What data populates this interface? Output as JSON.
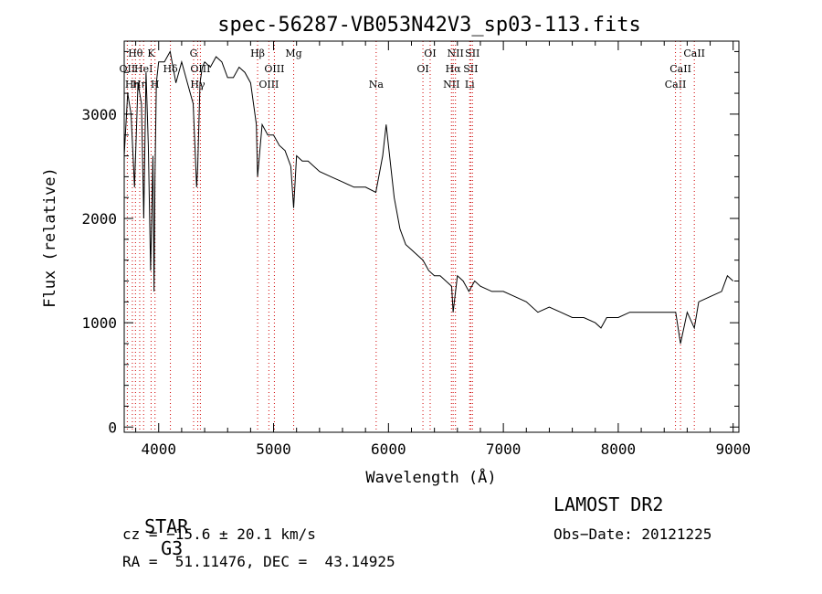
{
  "chart_data": {
    "type": "line",
    "title": "spec-56287-VB053N42V3_sp03-113.fits",
    "xlabel": "Wavelength (Å)",
    "ylabel": "Flux (relative)",
    "xlim": [
      3700,
      9050
    ],
    "ylim": [
      -50,
      3700
    ],
    "xticks": [
      4000,
      5000,
      6000,
      7000,
      8000,
      9000
    ],
    "yticks": [
      0,
      1000,
      2000,
      3000
    ],
    "grid": false,
    "series": [
      {
        "x": [
          3700,
          3730,
          3760,
          3790,
          3820,
          3850,
          3870,
          3890,
          3910,
          3930,
          3950,
          3960,
          3968,
          3980,
          4000,
          4050,
          4100,
          4150,
          4200,
          4250,
          4300,
          4330,
          4340,
          4360,
          4380,
          4400,
          4450,
          4500,
          4550,
          4600,
          4650,
          4700,
          4750,
          4800,
          4850,
          4861,
          4900,
          4950,
          5000,
          5050,
          5100,
          5150,
          5175,
          5200,
          5250,
          5300,
          5400,
          5500,
          5600,
          5700,
          5800,
          5890,
          5950,
          5980,
          6000,
          6050,
          6100,
          6150,
          6200,
          6250,
          6300,
          6350,
          6400,
          6450,
          6500,
          6550,
          6563,
          6600,
          6650,
          6700,
          6750,
          6800,
          6900,
          7000,
          7100,
          7200,
          7300,
          7400,
          7500,
          7600,
          7700,
          7800,
          7850,
          7900,
          8000,
          8100,
          8200,
          8300,
          8400,
          8500,
          8542,
          8600,
          8662,
          8700,
          8800,
          8900,
          8950,
          9000
        ],
        "values": [
          2600,
          3200,
          3000,
          2300,
          3300,
          3100,
          2000,
          3400,
          2700,
          1500,
          2600,
          1300,
          2400,
          3300,
          3500,
          3500,
          3600,
          3300,
          3500,
          3300,
          3100,
          2300,
          2500,
          3300,
          3450,
          3500,
          3450,
          3550,
          3500,
          3350,
          3350,
          3450,
          3400,
          3300,
          2900,
          2400,
          2900,
          2800,
          2800,
          2700,
          2650,
          2500,
          2100,
          2600,
          2550,
          2550,
          2450,
          2400,
          2350,
          2300,
          2300,
          2250,
          2600,
          2900,
          2700,
          2200,
          1900,
          1750,
          1700,
          1650,
          1600,
          1500,
          1450,
          1450,
          1400,
          1350,
          1100,
          1450,
          1400,
          1300,
          1400,
          1350,
          1300,
          1300,
          1250,
          1200,
          1100,
          1150,
          1100,
          1050,
          1050,
          1000,
          950,
          1050,
          1050,
          1100,
          1100,
          1100,
          1100,
          1100,
          800,
          1100,
          950,
          1200,
          1250,
          1300,
          1450,
          1400
        ]
      }
    ],
    "lines": [
      {
        "x": 3727,
        "label": "OII",
        "row": 2
      },
      {
        "x": 3771,
        "label": "Hη",
        "row": 3
      },
      {
        "x": 3798,
        "label": "Hθ",
        "row": 1
      },
      {
        "x": 3835,
        "label": "Hη",
        "row": 3
      },
      {
        "x": 3869,
        "label": "HeI",
        "row": 2
      },
      {
        "x": 3934,
        "label": "K",
        "row": 1
      },
      {
        "x": 3968,
        "label": "H",
        "row": 3
      },
      {
        "x": 4102,
        "label": "Hδ",
        "row": 2
      },
      {
        "x": 4304,
        "label": "G",
        "row": 1
      },
      {
        "x": 4340,
        "label": "Hγ",
        "row": 3
      },
      {
        "x": 4363,
        "label": "OIII",
        "row": 2
      },
      {
        "x": 4861,
        "label": "Hβ",
        "row": 1
      },
      {
        "x": 4959,
        "label": "OIII",
        "row": 3
      },
      {
        "x": 5007,
        "label": "OIII",
        "row": 2
      },
      {
        "x": 5175,
        "label": "Mg",
        "row": 1
      },
      {
        "x": 5893,
        "label": "Na",
        "row": 3
      },
      {
        "x": 6300,
        "label": "OI",
        "row": 2
      },
      {
        "x": 6363,
        "label": "OI",
        "row": 1
      },
      {
        "x": 6548,
        "label": "NII",
        "row": 3
      },
      {
        "x": 6563,
        "label": "Hα",
        "row": 2
      },
      {
        "x": 6583,
        "label": "NII",
        "row": 1
      },
      {
        "x": 6707,
        "label": "Li",
        "row": 3
      },
      {
        "x": 6716,
        "label": "SII",
        "row": 2
      },
      {
        "x": 6731,
        "label": "SII",
        "row": 1
      },
      {
        "x": 8498,
        "label": "CaII",
        "row": 3
      },
      {
        "x": 8542,
        "label": "CaII",
        "row": 2
      },
      {
        "x": 8662,
        "label": "CaII",
        "row": 1
      }
    ]
  },
  "info": {
    "object_class": "STAR",
    "subclass": "G3",
    "survey": "LAMOST DR2",
    "redshift": "cz = −15.6 ± 20.1 km/s",
    "obs_date": "Obs−Date: 20121225",
    "coords": "RA =  51.11476, DEC =  43.14925"
  },
  "colors": {
    "spectrum": "#000000",
    "line_markers": "#d00000"
  }
}
